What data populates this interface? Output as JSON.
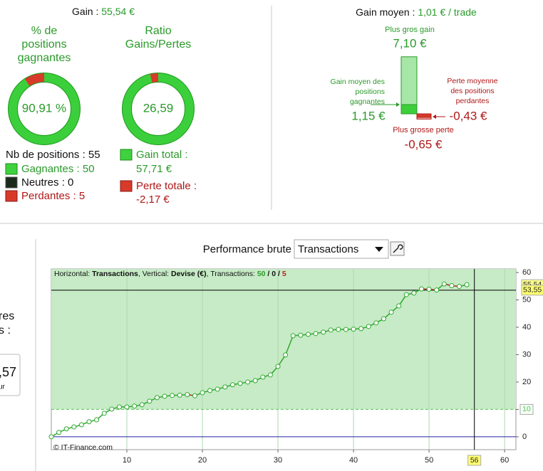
{
  "summary": {
    "gain_label": "Gain :",
    "gain_value": "55,54 €",
    "win_pct": {
      "title": [
        "% de",
        "positions",
        "gagnantes"
      ],
      "value": 90.91,
      "label": "90,91 %"
    },
    "ratio": {
      "title": [
        "Ratio",
        "Gains/Pertes"
      ],
      "value": 26.59,
      "label": "26,59"
    },
    "nb_positions": "Nb de positions : 55",
    "winners": "Gagnantes : 50",
    "neutral": "Neutres : 0",
    "losers": "Perdantes : 5",
    "total_gain": {
      "title": "Gain total :",
      "label": "57,71 €"
    },
    "total_loss": {
      "title": "Perte totale :",
      "label": "-2,17 €"
    }
  },
  "average": {
    "title_label": "Gain moyen :",
    "title_value": "1,01 € / trade",
    "max_gain": {
      "title": "Plus gros gain",
      "value": 7.1,
      "label": "7,10 €"
    },
    "avg_gain": {
      "title": [
        "Gain moyen des",
        "positions",
        "gagnantes"
      ],
      "value": 1.15,
      "label": "1,15 €"
    },
    "avg_loss": {
      "title": [
        "Perte moyenne",
        "des positions",
        "perdantes"
      ],
      "value": -0.43,
      "label": "-0,43 €"
    },
    "max_loss": {
      "title": "Plus grosse perte",
      "value": -0.65,
      "label": "-0,65 €"
    }
  },
  "left_panel": {
    "lines": [
      "res",
      "s :"
    ],
    "value": ",57",
    "unit": "ur"
  },
  "toolbar": {
    "label": "Performance brute",
    "select": "Transactions"
  },
  "chart_data": {
    "type": "line",
    "info": [
      {
        "text": "Horizontal: "
      },
      {
        "text": "Transactions",
        "bold": true
      },
      {
        "text": ", Vertical: "
      },
      {
        "text": "Devise (€)",
        "bold": true
      },
      {
        "text": ", Transactions: "
      },
      {
        "text": "50",
        "bold": true,
        "color": "#2a9a2a"
      },
      {
        "text": " / ",
        "bold": true
      },
      {
        "text": "0",
        "bold": true
      },
      {
        "text": " / ",
        "bold": true
      },
      {
        "text": "5",
        "bold": true,
        "color": "#c02020"
      }
    ],
    "credit": "© IT-Finance.com",
    "x": [
      0,
      1,
      2,
      3,
      4,
      5,
      6,
      7,
      8,
      9,
      10,
      11,
      12,
      13,
      14,
      15,
      16,
      17,
      18,
      19,
      20,
      21,
      22,
      23,
      24,
      25,
      26,
      27,
      28,
      29,
      30,
      31,
      32,
      33,
      34,
      35,
      36,
      37,
      38,
      39,
      40,
      41,
      42,
      43,
      44,
      45,
      46,
      47,
      48,
      49,
      50,
      51,
      52,
      53,
      54,
      55
    ],
    "values": [
      0,
      1.6,
      2.9,
      3.6,
      4.4,
      5.5,
      6.2,
      8.6,
      10.1,
      10.9,
      10.9,
      11.2,
      11.7,
      13,
      14.3,
      14.8,
      15.1,
      15.2,
      15.4,
      15,
      16.1,
      16.9,
      17.4,
      18.2,
      19,
      19.5,
      20,
      20.5,
      21.8,
      22.6,
      25.7,
      29.9,
      36.9,
      37.1,
      37.4,
      37.7,
      38.2,
      39,
      39.2,
      39.2,
      39.3,
      39.5,
      40.3,
      41.6,
      43.1,
      45.5,
      47.8,
      51.9,
      52.5,
      54,
      53.9,
      53.6,
      55.8,
      55.2,
      54.9,
      55.54
    ],
    "color": "#2fa82f",
    "down_color": "#c02020",
    "xlim": [
      0,
      61.5
    ],
    "xticks": [
      10,
      20,
      30,
      40,
      50,
      60
    ],
    "ylim": [
      -4.7,
      61.3
    ],
    "yticks": [
      0,
      10,
      20,
      30,
      40,
      50,
      60
    ],
    "grid": "x",
    "markers": {
      "last": {
        "value": 55.54,
        "label": "55,54"
      },
      "h_line": {
        "value": 53.55,
        "label": "53,55"
      },
      "threshold": {
        "value": 10,
        "label": "10"
      },
      "v_line": {
        "value": 56,
        "label": "56"
      }
    }
  }
}
